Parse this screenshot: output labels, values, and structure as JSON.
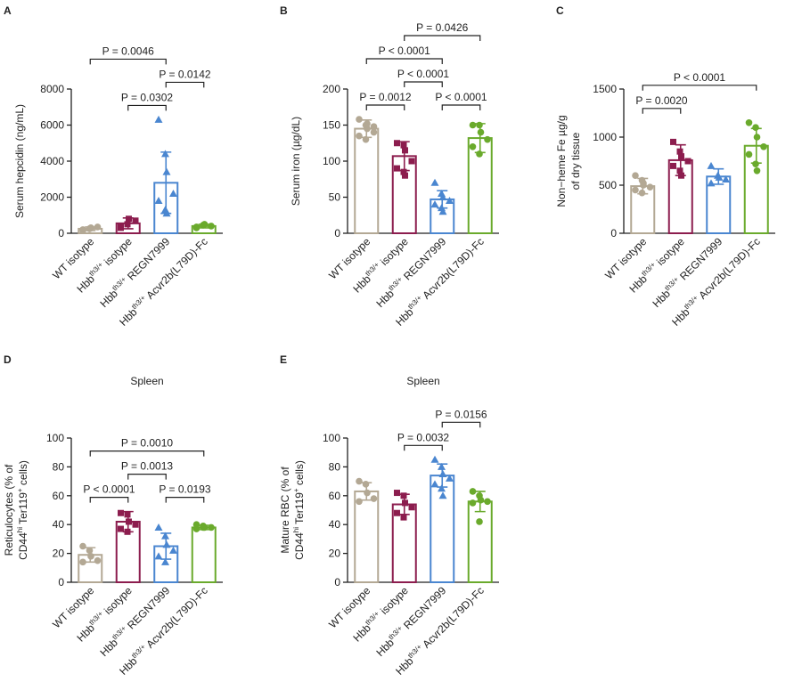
{
  "chart_data": [
    {
      "type": "bar",
      "panel": "A",
      "ylabel": [
        [
          "Serum hepcidin (ng/mL)"
        ]
      ],
      "categories": [
        [
          "WT isotype"
        ],
        [
          "Hbb",
          "th3/+",
          " isotype"
        ],
        [
          "Hbb",
          "th3/+",
          " REGN7999"
        ],
        [
          "Hbb",
          "th3/+",
          " Acvr2b(L79D)-Fc"
        ]
      ],
      "values": [
        250,
        550,
        2800,
        400
      ],
      "errors": [
        100,
        300,
        1700,
        100
      ],
      "points": [
        [
          150,
          250,
          300,
          350,
          200,
          250,
          300
        ],
        [
          300,
          500,
          800,
          700,
          400
        ],
        [
          6300,
          4400,
          3400,
          2200,
          1800,
          1300,
          1100
        ],
        [
          300,
          450,
          500,
          400,
          350
        ]
      ],
      "colors": [
        "#b3a894",
        "#8c1d4e",
        "#4a86d0",
        "#6aaa2c"
      ],
      "markers": [
        "circle",
        "square",
        "triangle",
        "circle"
      ],
      "ylim": [
        0,
        8000
      ],
      "yticks": [
        0,
        2000,
        4000,
        6000,
        8000
      ],
      "annotations": [
        {
          "groups": [
            1,
            2
          ],
          "label": "P = 0.0302"
        },
        {
          "groups": [
            2,
            3
          ],
          "label": "P = 0.0142"
        },
        {
          "groups": [
            0,
            2
          ],
          "label": "P = 0.0046"
        }
      ]
    },
    {
      "type": "bar",
      "panel": "B",
      "ylabel": [
        [
          "Serum iron (µg/dL)"
        ]
      ],
      "categories": [
        [
          "WT isotype"
        ],
        [
          "Hbb",
          "th3/+",
          " isotype"
        ],
        [
          "Hbb",
          "th3/+",
          " REGN7999"
        ],
        [
          "Hbb",
          "th3/+",
          " Acvr2b(L79D)-Fc"
        ]
      ],
      "values": [
        145,
        107,
        47,
        132
      ],
      "errors": [
        12,
        20,
        12,
        20
      ],
      "points": [
        [
          158,
          150,
          145,
          140,
          135,
          130,
          152,
          148
        ],
        [
          125,
          122,
          115,
          100,
          90,
          85,
          80
        ],
        [
          70,
          55,
          50,
          45,
          40,
          35,
          30
        ],
        [
          150,
          150,
          140,
          130,
          120,
          110
        ]
      ],
      "colors": [
        "#b3a894",
        "#8c1d4e",
        "#4a86d0",
        "#6aaa2c"
      ],
      "markers": [
        "circle",
        "square",
        "triangle",
        "circle"
      ],
      "ylim": [
        0,
        200
      ],
      "yticks": [
        0,
        50,
        100,
        150,
        200
      ],
      "annotations": [
        {
          "groups": [
            0,
            1
          ],
          "label": "P = 0.0012"
        },
        {
          "groups": [
            2,
            3
          ],
          "label": "P < 0.0001"
        },
        {
          "groups": [
            1,
            2
          ],
          "label": "P < 0.0001"
        },
        {
          "groups": [
            0,
            2
          ],
          "label": "P < 0.0001"
        },
        {
          "groups": [
            1,
            3
          ],
          "label": "P = 0.0426"
        }
      ]
    },
    {
      "type": "bar",
      "panel": "C",
      "ylabel": [
        [
          "Non−heme Fe µg/g"
        ],
        [
          "of dry tissue"
        ]
      ],
      "categories": [
        [
          "WT isotype"
        ],
        [
          "Hbb",
          "th3/+",
          " isotype"
        ],
        [
          "Hbb",
          "th3/+",
          " REGN7999"
        ],
        [
          "Hbb",
          "th3/+",
          " Acvr2b(L79D)-Fc"
        ]
      ],
      "values": [
        490,
        760,
        590,
        910
      ],
      "errors": [
        80,
        160,
        80,
        180
      ],
      "points": [
        [
          600,
          550,
          500,
          480,
          450,
          420,
          520
        ],
        [
          950,
          850,
          800,
          750,
          700,
          650,
          600
        ],
        [
          700,
          600,
          580,
          560,
          520
        ],
        [
          1150,
          1100,
          1000,
          900,
          820,
          720,
          650
        ]
      ],
      "colors": [
        "#b3a894",
        "#8c1d4e",
        "#4a86d0",
        "#6aaa2c"
      ],
      "markers": [
        "circle",
        "square",
        "triangle",
        "circle"
      ],
      "ylim": [
        0,
        1500
      ],
      "yticks": [
        0,
        500,
        1000,
        1500
      ],
      "annotations": [
        {
          "groups": [
            0,
            1
          ],
          "label": "P = 0.0020"
        },
        {
          "groups": [
            0,
            3
          ],
          "label": "P < 0.0001"
        }
      ]
    },
    {
      "type": "bar",
      "panel": "D",
      "title": "Spleen",
      "ylabel": [
        [
          "Reticulocytes (% of"
        ],
        [
          "CD44",
          "hi",
          " Ter119",
          "+",
          " cells)"
        ]
      ],
      "categories": [
        [
          "WT isotype"
        ],
        [
          "Hbb",
          "th3/+",
          " isotype"
        ],
        [
          "Hbb",
          "th3/+",
          " REGN7999"
        ],
        [
          "Hbb",
          "th3/+",
          " Acvr2b(L79D)-Fc"
        ]
      ],
      "values": [
        19,
        42,
        25,
        38
      ],
      "errors": [
        5,
        7,
        9,
        1.5
      ],
      "points": [
        [
          25,
          22,
          18,
          15,
          14
        ],
        [
          48,
          47,
          42,
          40,
          37,
          35
        ],
        [
          38,
          32,
          26,
          22,
          18,
          14
        ],
        [
          40,
          39,
          38,
          38,
          37,
          38
        ]
      ],
      "colors": [
        "#b3a894",
        "#8c1d4e",
        "#4a86d0",
        "#6aaa2c"
      ],
      "markers": [
        "circle",
        "square",
        "triangle",
        "circle"
      ],
      "ylim": [
        0,
        100
      ],
      "yticks": [
        0,
        20,
        40,
        60,
        80,
        100
      ],
      "annotations": [
        {
          "groups": [
            0,
            1
          ],
          "label": "P < 0.0001"
        },
        {
          "groups": [
            2,
            3
          ],
          "label": "P = 0.0193"
        },
        {
          "groups": [
            1,
            2
          ],
          "label": "P = 0.0013"
        },
        {
          "groups": [
            0,
            3
          ],
          "label": "P = 0.0010"
        }
      ]
    },
    {
      "type": "bar",
      "panel": "E",
      "title": "Spleen",
      "ylabel": [
        [
          "Mature RBC (% of"
        ],
        [
          "CD44",
          "hi",
          " Ter119",
          "+",
          " cells)"
        ]
      ],
      "categories": [
        [
          "WT isotype"
        ],
        [
          "Hbb",
          "th3/+",
          " isotype"
        ],
        [
          "Hbb",
          "th3/+",
          " REGN7999"
        ],
        [
          "Hbb",
          "th3/+",
          " Acvr2b(L79D)-Fc"
        ]
      ],
      "values": [
        63,
        54,
        74,
        56
      ],
      "errors": [
        6,
        7,
        8,
        7
      ],
      "points": [
        [
          70,
          68,
          62,
          58,
          56
        ],
        [
          62,
          60,
          55,
          52,
          48,
          45
        ],
        [
          85,
          80,
          75,
          72,
          68,
          65,
          60
        ],
        [
          63,
          60,
          57,
          56,
          55,
          42
        ]
      ],
      "colors": [
        "#b3a894",
        "#8c1d4e",
        "#4a86d0",
        "#6aaa2c"
      ],
      "markers": [
        "circle",
        "square",
        "triangle",
        "circle"
      ],
      "ylim": [
        0,
        100
      ],
      "yticks": [
        0,
        20,
        40,
        60,
        80,
        100
      ],
      "annotations": [
        {
          "groups": [
            1,
            2
          ],
          "label": "P = 0.0032"
        },
        {
          "groups": [
            2,
            3
          ],
          "label": "P = 0.0156"
        }
      ]
    }
  ]
}
